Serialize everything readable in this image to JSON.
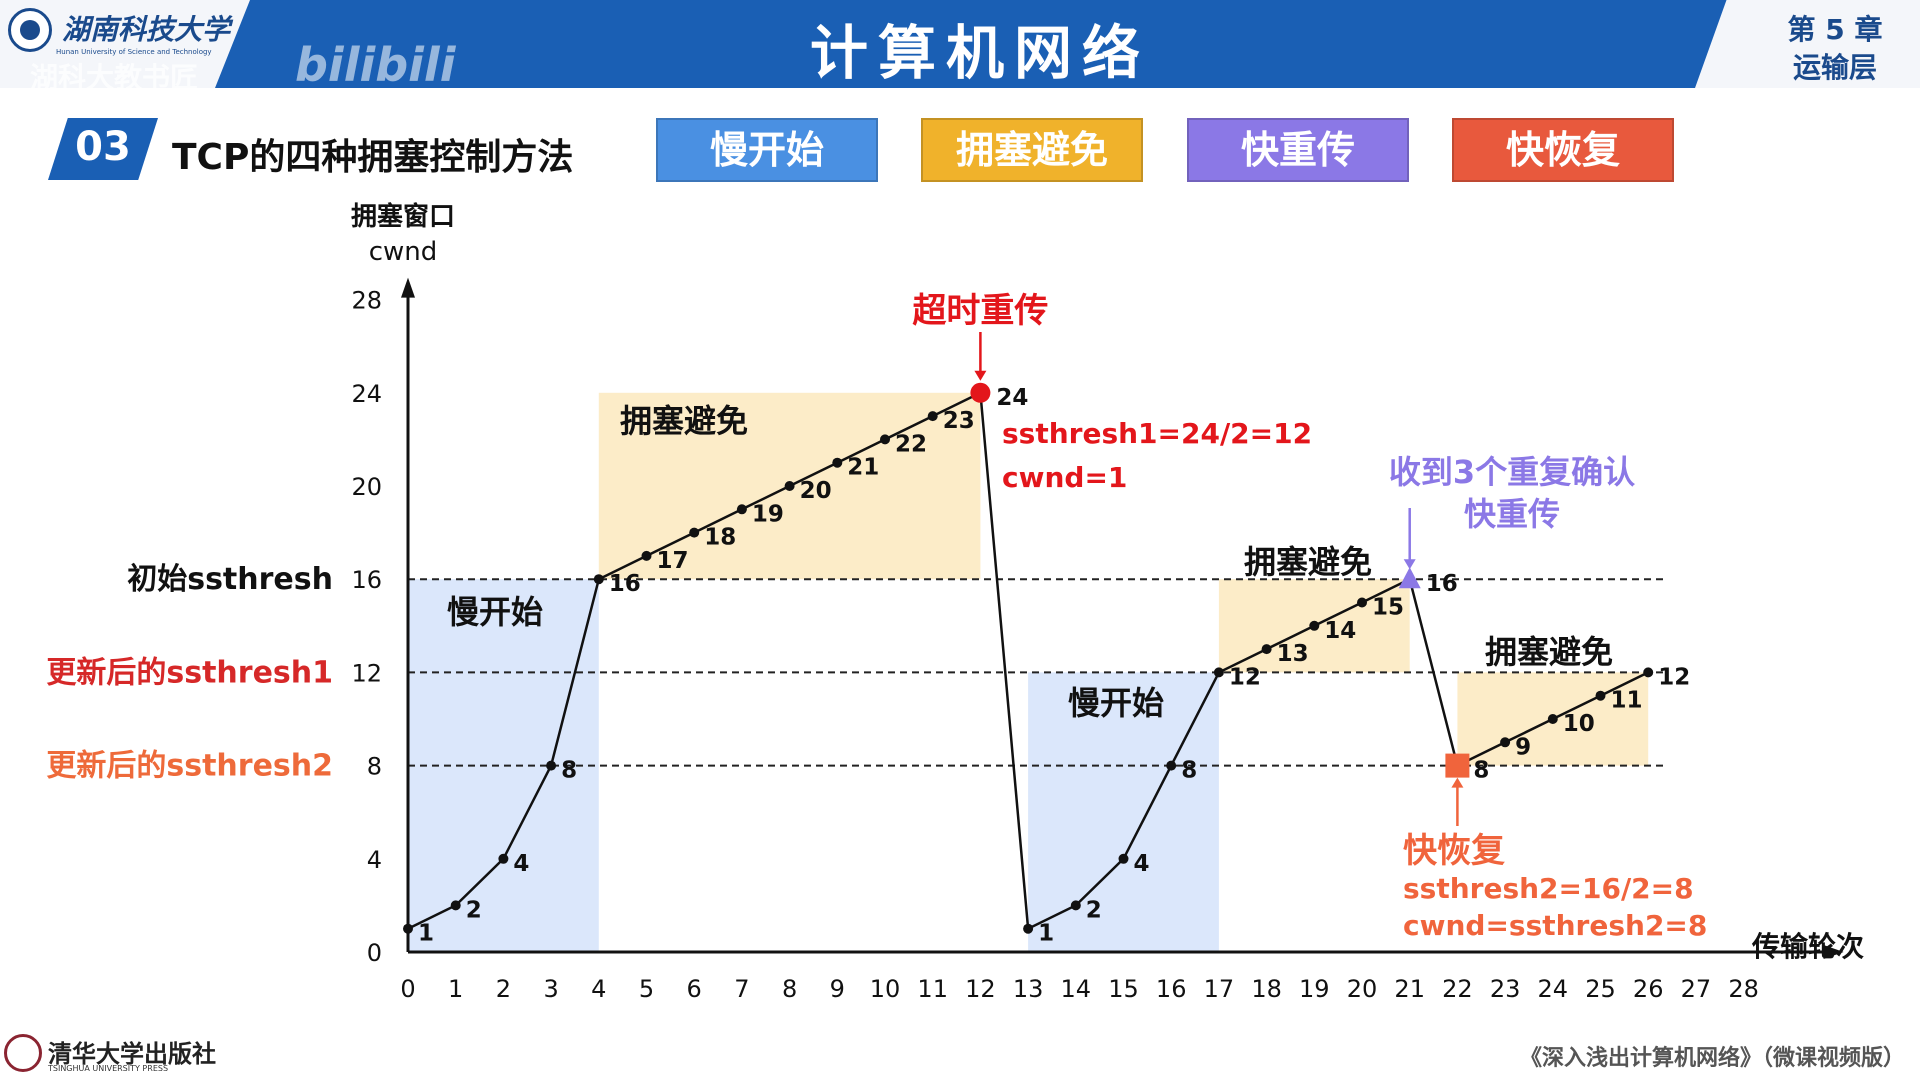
{
  "header": {
    "university_name": "湖南科技大学",
    "university_subtitle": "Hunan University of Science and Technology",
    "watermark": "湖科大教书匠",
    "watermark_2": "bilibili",
    "course_title": "计算机网络",
    "chapter_number": "第 5 章",
    "chapter_name": "运输层",
    "brand_color": "#1a5fb4"
  },
  "section": {
    "number": "03",
    "title": "TCP的四种拥塞控制方法",
    "methods": [
      {
        "label": "慢开始",
        "color": "#4a90e2"
      },
      {
        "label": "拥塞避免",
        "color": "#f0b22b"
      },
      {
        "label": "快重传",
        "color": "#8b78e6"
      },
      {
        "label": "快恢复",
        "color": "#e8593d"
      }
    ]
  },
  "chart_data": {
    "type": "line",
    "ylabel": "拥塞窗口",
    "ylabel_2": "cwnd",
    "xlabel": "传输轮次",
    "xlim": [
      0,
      28
    ],
    "ylim": [
      0,
      28
    ],
    "x_ticks": [
      0,
      1,
      2,
      3,
      4,
      5,
      6,
      7,
      8,
      9,
      10,
      11,
      12,
      13,
      14,
      15,
      16,
      17,
      18,
      19,
      20,
      21,
      22,
      23,
      24,
      25,
      26,
      27,
      28
    ],
    "y_ticks": [
      0,
      4,
      8,
      12,
      16,
      20,
      24,
      28
    ],
    "grid": false,
    "series": [
      {
        "x": [
          0,
          1,
          2,
          3,
          4,
          5,
          6,
          7,
          8,
          9,
          10,
          11,
          12,
          13,
          14,
          15,
          16,
          17,
          18,
          19,
          20,
          21,
          22,
          23,
          24,
          25,
          26
        ],
        "y": [
          1,
          2,
          4,
          8,
          16,
          17,
          18,
          19,
          20,
          21,
          22,
          23,
          24,
          1,
          2,
          4,
          8,
          12,
          13,
          14,
          15,
          16,
          8,
          9,
          10,
          11,
          12
        ]
      }
    ],
    "threshold_lines": [
      {
        "y": 16,
        "label": "初始ssthresh",
        "color": "#111111"
      },
      {
        "y": 12,
        "label": "更新后的ssthresh1",
        "color": "#d62828"
      },
      {
        "y": 8,
        "label": "更新后的ssthresh2",
        "color": "#ee6a3a"
      }
    ],
    "phases": [
      {
        "label": "慢开始",
        "x": [
          0,
          4
        ],
        "y": [
          0,
          16
        ],
        "color": "#dbe7fb"
      },
      {
        "label": "拥塞避免",
        "x": [
          4,
          12
        ],
        "y": [
          16,
          24
        ],
        "color": "#fcecc8"
      },
      {
        "label": "慢开始",
        "x": [
          13,
          17
        ],
        "y": [
          0,
          12
        ],
        "color": "#dbe7fb"
      },
      {
        "label": "拥塞避免",
        "x": [
          17,
          21
        ],
        "y": [
          12,
          16
        ],
        "color": "#fcecc8"
      },
      {
        "label": "拥塞避免",
        "x": [
          22,
          26
        ],
        "y": [
          8,
          12
        ],
        "color": "#fcecc8"
      }
    ],
    "events": [
      {
        "x": 12,
        "y": 24,
        "marker": "circle",
        "color": "#e3161b",
        "title": "超时重传",
        "lines": [
          "ssthresh1=24/2=12",
          "cwnd=1"
        ]
      },
      {
        "x": 21,
        "y": 16,
        "marker": "triangle",
        "color": "#8b78e6",
        "title": "收到3个重复确认",
        "title_2": "快重传"
      },
      {
        "x": 22,
        "y": 8,
        "marker": "square",
        "color": "#f0643c",
        "title": "快恢复",
        "lines": [
          "ssthresh2=16/2=8",
          "cwnd=ssthresh2=8"
        ]
      }
    ]
  },
  "footer": {
    "publisher": "清华大学出版社",
    "publisher_sub": "TSINGHUA UNIVERSITY PRESS",
    "book_title": "《深入浅出计算机网络》（微课视频版）"
  }
}
